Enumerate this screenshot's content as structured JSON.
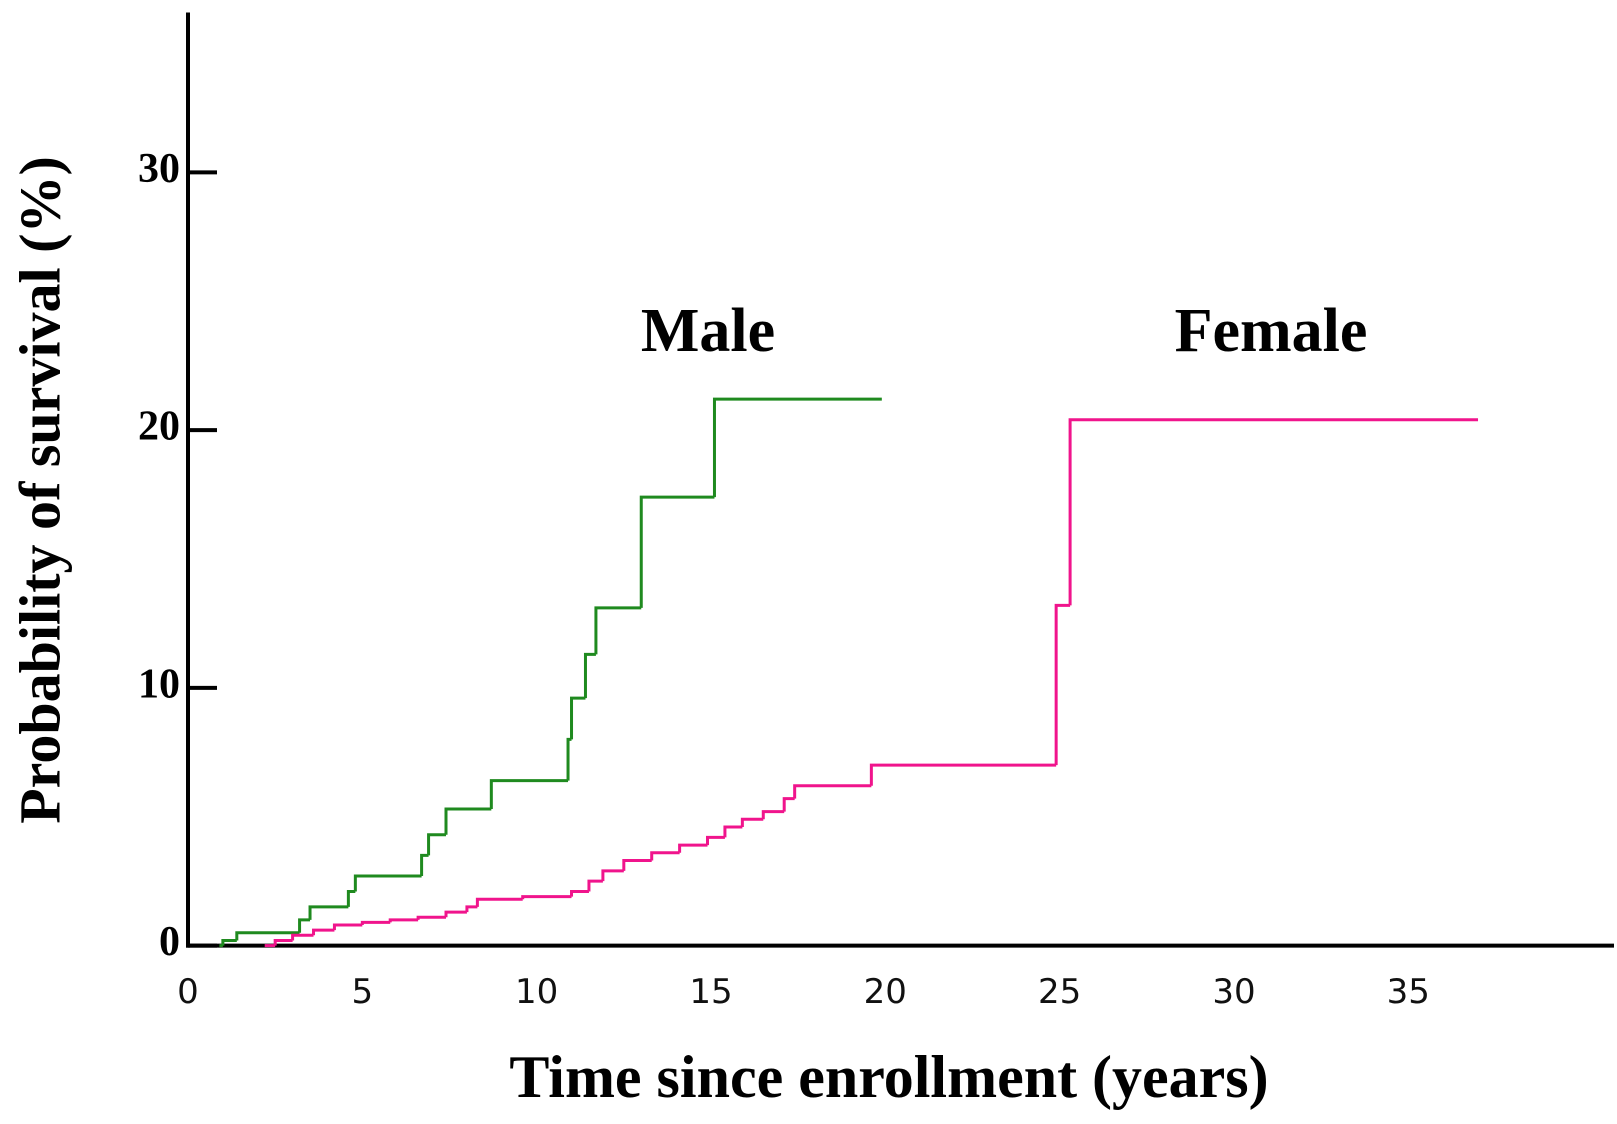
{
  "chart_data": {
    "type": "line",
    "drawstyle": "steps-post",
    "x_label": "Time since enrollment (years)",
    "y_label": "Probability of survival (%)",
    "xlim": [
      0,
      40.9
    ],
    "ylim": [
      0,
      36.2
    ],
    "xticks": [
      0,
      5,
      10,
      15,
      20,
      25,
      30,
      35
    ],
    "yticks": [
      0,
      10,
      20,
      30
    ],
    "series": [
      {
        "name": "Male",
        "color": "#1f8a1f",
        "x": [
          0.9,
          1.0,
          1.4,
          3.2,
          3.5,
          4.6,
          4.8,
          6.7,
          6.9,
          7.4,
          8.7,
          10.9,
          11.0,
          11.4,
          11.7,
          13.0,
          15.1,
          19.9
        ],
        "values": [
          0,
          0.2,
          0.5,
          1.0,
          1.5,
          2.1,
          2.7,
          3.5,
          4.3,
          5.3,
          6.4,
          8.0,
          9.6,
          11.3,
          13.1,
          17.4,
          21.2,
          21.2
        ]
      },
      {
        "name": "Female",
        "color": "#f0148c",
        "x": [
          2.2,
          2.5,
          3.0,
          3.6,
          4.2,
          5.0,
          5.8,
          6.6,
          7.4,
          8.0,
          8.3,
          9.6,
          11.0,
          11.5,
          11.9,
          12.5,
          13.3,
          14.1,
          14.9,
          15.4,
          15.9,
          16.5,
          17.1,
          17.4,
          19.6,
          24.9,
          25.3,
          37.0
        ],
        "values": [
          0,
          0.2,
          0.4,
          0.6,
          0.8,
          0.9,
          1.0,
          1.1,
          1.3,
          1.5,
          1.8,
          1.9,
          2.1,
          2.5,
          2.9,
          3.3,
          3.6,
          3.9,
          4.2,
          4.6,
          4.9,
          5.2,
          5.7,
          6.2,
          7.0,
          13.2,
          20.4,
          20.4
        ]
      }
    ]
  }
}
